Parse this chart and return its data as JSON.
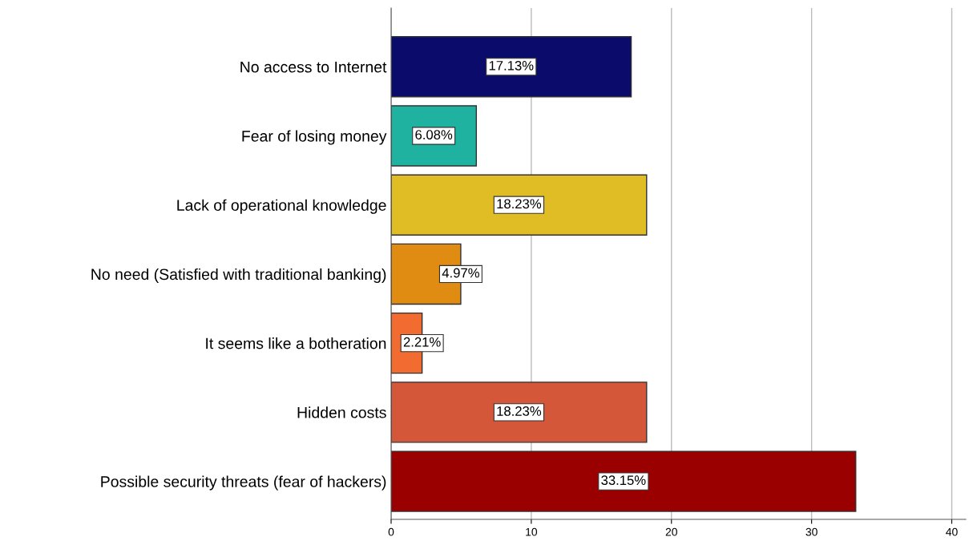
{
  "chart_data": {
    "type": "bar",
    "orientation": "horizontal",
    "categories": [
      "No access to Internet",
      "Fear of losing money",
      "Lack of operational knowledge",
      "No need (Satisfied with traditional banking)",
      "It seems like a botheration",
      "Hidden costs",
      "Possible security threats (fear of hackers)"
    ],
    "values": [
      17.13,
      6.08,
      18.23,
      4.97,
      2.21,
      18.23,
      33.15
    ],
    "value_labels": [
      "17.13%",
      "6.08%",
      "18.23%",
      "4.97%",
      "2.21%",
      "18.23%",
      "33.15%"
    ],
    "colors": [
      "#0b0b6b",
      "#20b2a0",
      "#e0bd25",
      "#e08c12",
      "#f26b30",
      "#d5573a",
      "#9b0000"
    ],
    "xlim": [
      0,
      41
    ],
    "xticks": [
      0,
      10,
      20,
      30,
      40
    ],
    "grid": "x"
  }
}
